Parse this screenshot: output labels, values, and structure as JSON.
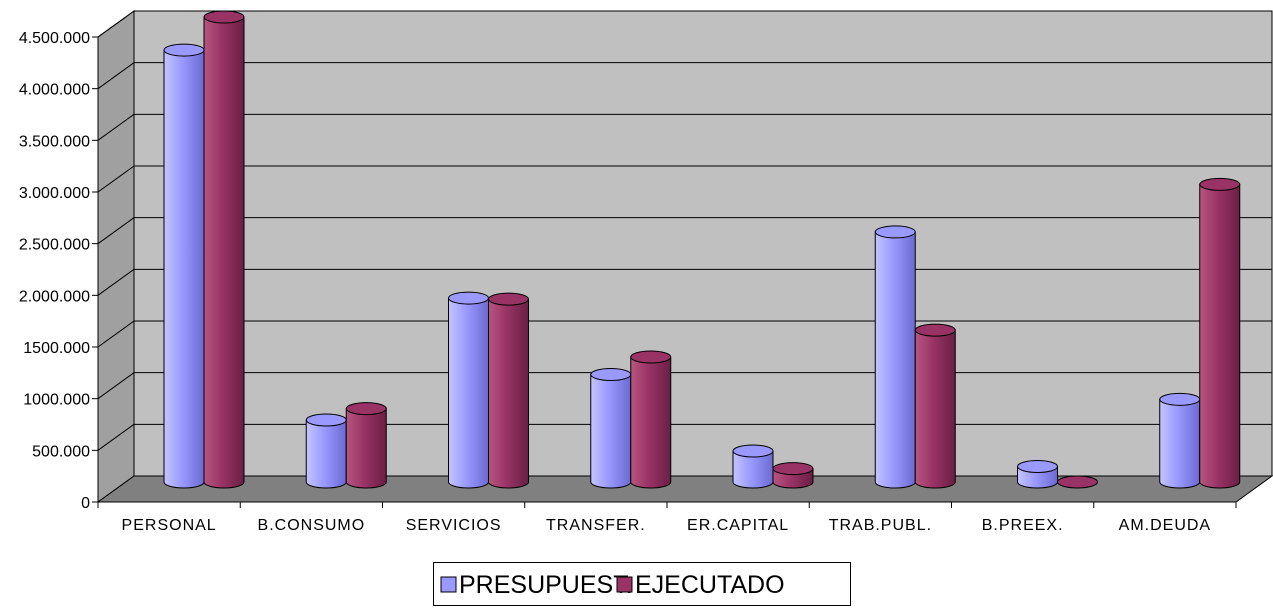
{
  "chart_data": {
    "type": "bar",
    "title": "",
    "xlabel": "",
    "ylabel": "",
    "categories": [
      "PERSONAL",
      "B.CONSUMO",
      "SERVICIOS",
      "TRANSFER.",
      "ER.CAPITAL",
      "TRAB.PUBL.",
      "B.PREEX.",
      "AM.DEUDA"
    ],
    "ylim": [
      0,
      4500000
    ],
    "yticks": [
      {
        "value": 0,
        "label": "0"
      },
      {
        "value": 500000,
        "label": "500.000"
      },
      {
        "value": 1000000,
        "label": "1000.000"
      },
      {
        "value": 1500000,
        "label": "1500.000"
      },
      {
        "value": 2000000,
        "label": "2.000.000"
      },
      {
        "value": 2500000,
        "label": "2.500.000"
      },
      {
        "value": 3000000,
        "label": "3.000.000"
      },
      {
        "value": 3500000,
        "label": "3.500.000"
      },
      {
        "value": 4000000,
        "label": "4.000.000"
      },
      {
        "value": 4500000,
        "label": "4.500.000"
      }
    ],
    "series": [
      {
        "name": "PRESUPUEST.",
        "color": "#9999ff",
        "values": [
          4180000,
          600000,
          1780000,
          1040000,
          300000,
          2420000,
          150000,
          800000
        ]
      },
      {
        "name": "EJECUTADO",
        "color": "#993366",
        "values": [
          4500000,
          710000,
          1770000,
          1210000,
          130000,
          1470000,
          0,
          2880000
        ]
      }
    ],
    "grid": true,
    "legend": "bottom",
    "style": "3d-cylinder"
  }
}
